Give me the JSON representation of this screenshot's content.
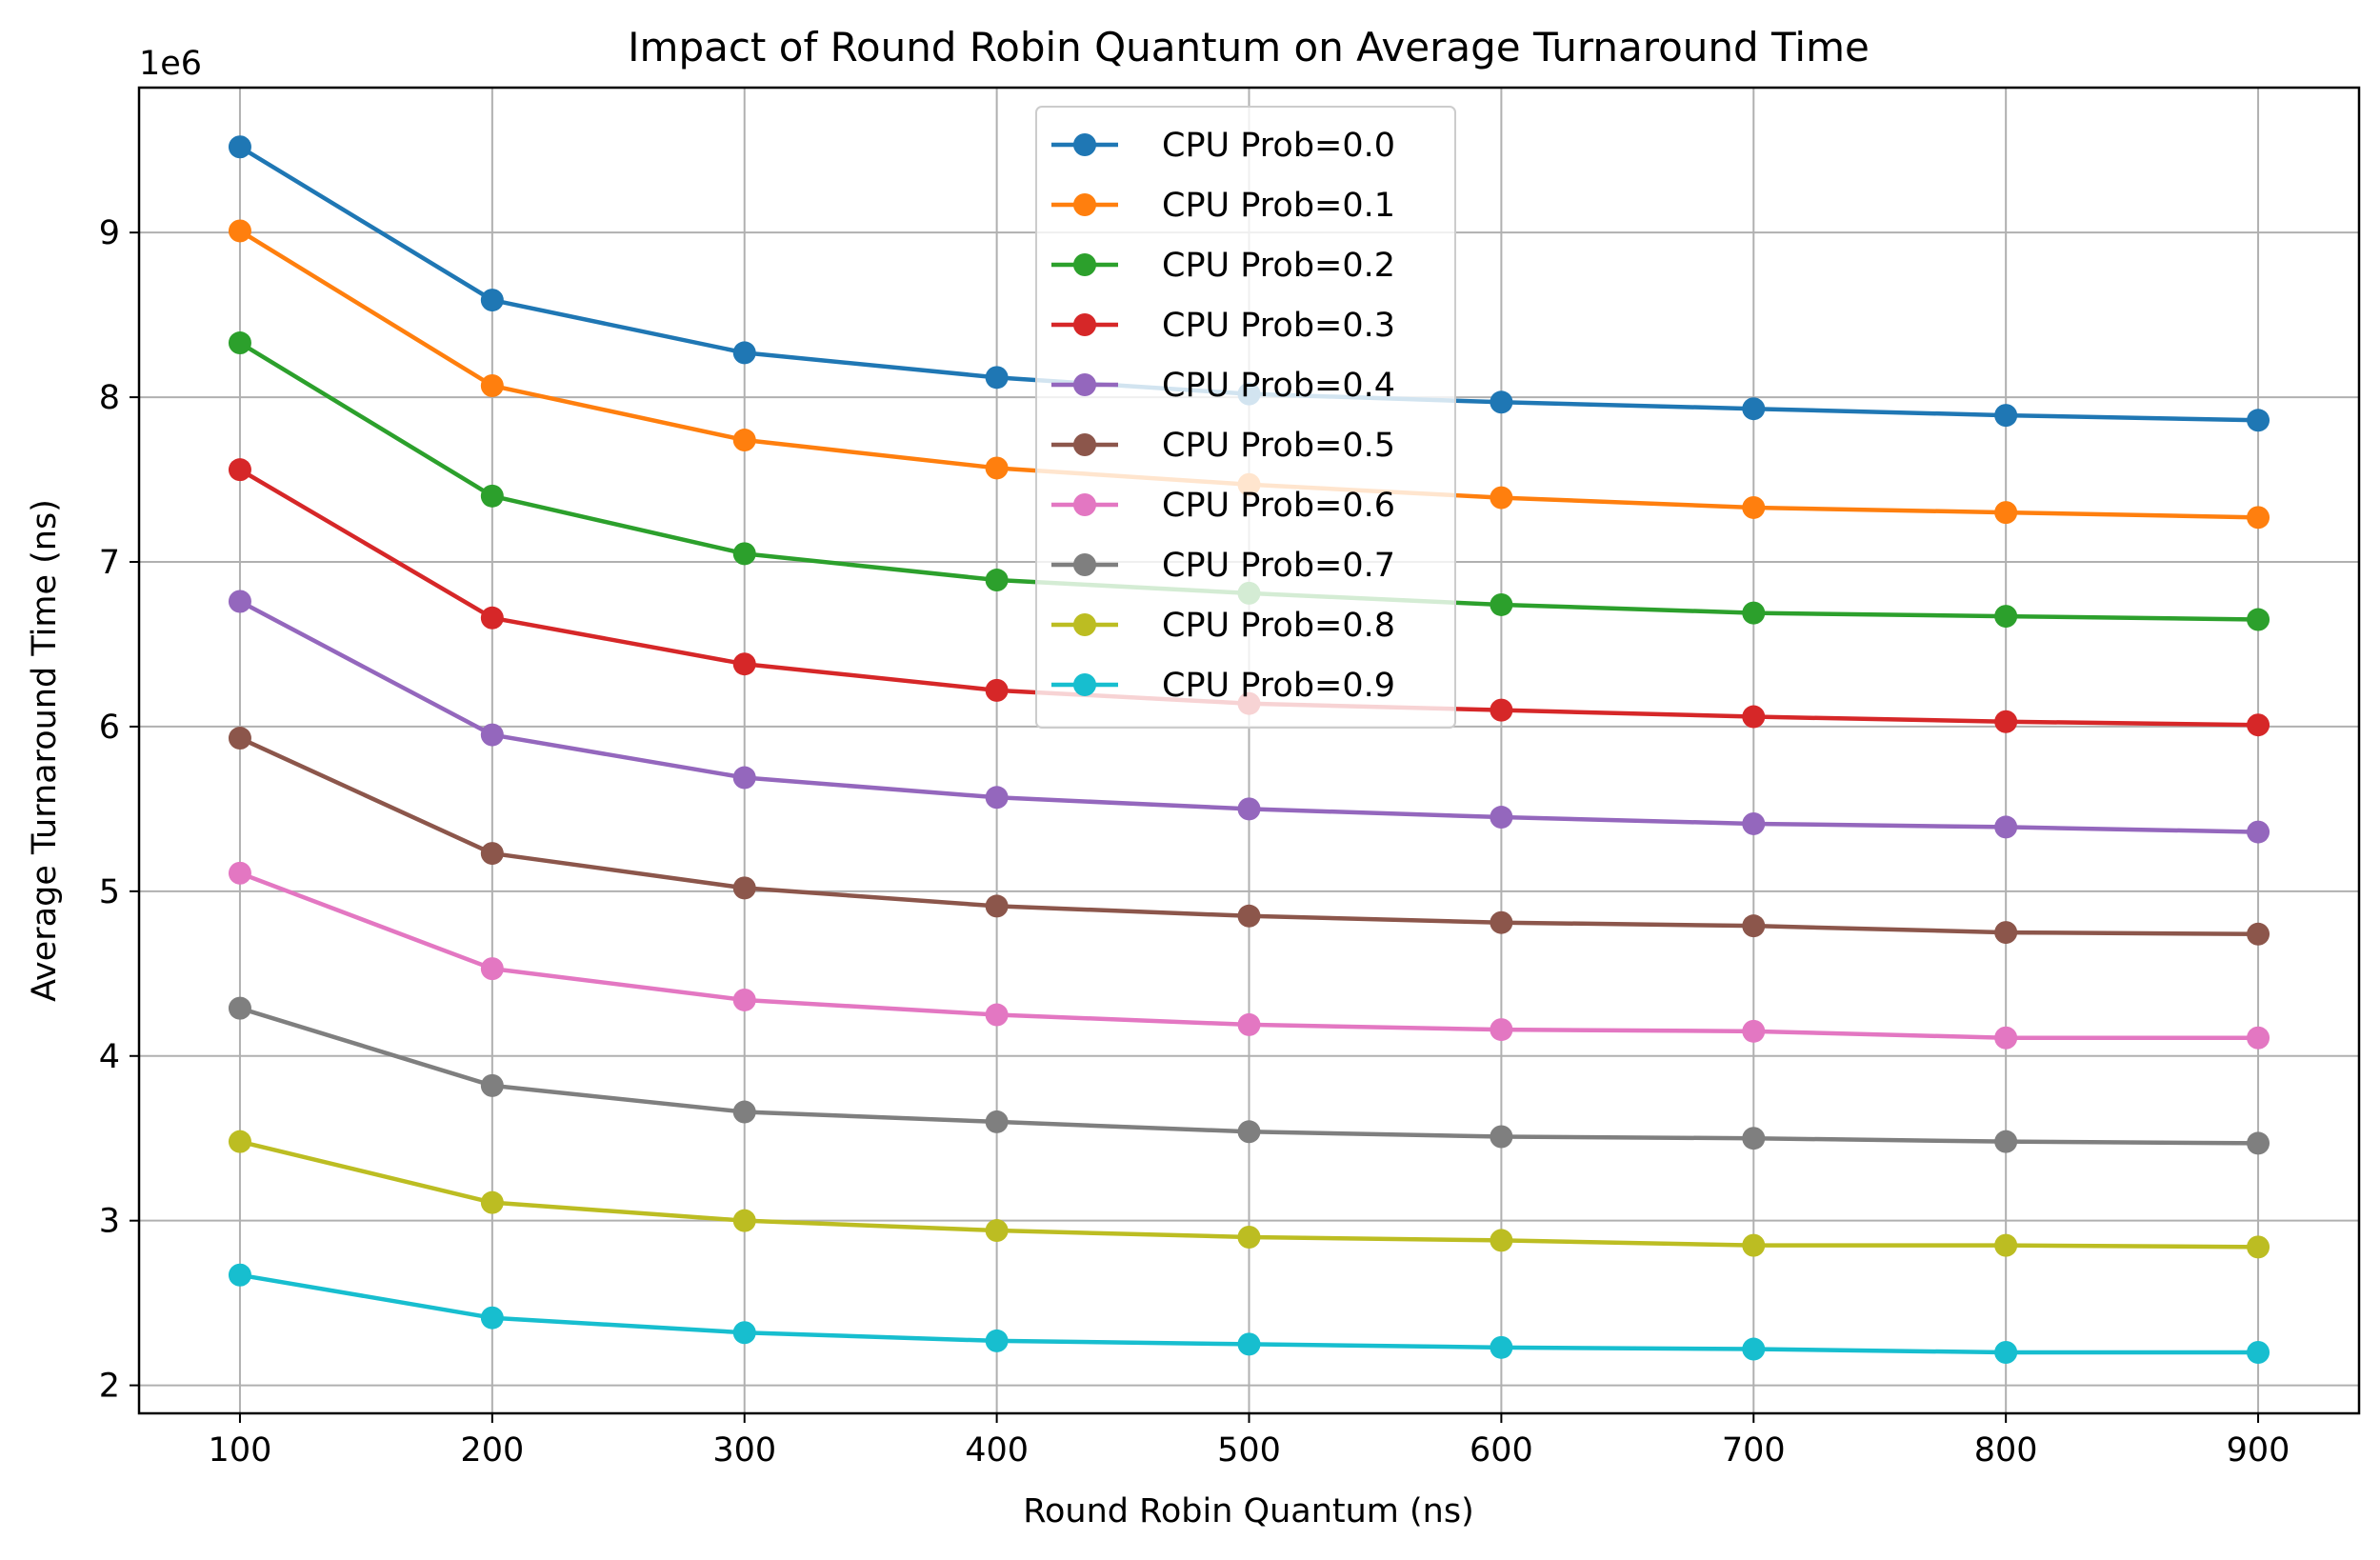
{
  "chart_data": {
    "type": "line",
    "title": "Impact of Round Robin Quantum on Average Turnaround Time",
    "xlabel": "Round Robin Quantum (ns)",
    "ylabel": "Average Turnaround Time (ns)",
    "y_offset_label": "1e6",
    "x": [
      100,
      200,
      300,
      400,
      500,
      600,
      700,
      800,
      900
    ],
    "x_ticks": [
      "100",
      "200",
      "300",
      "400",
      "500",
      "600",
      "700",
      "800",
      "900"
    ],
    "y_ticks": [
      "2",
      "3",
      "4",
      "5",
      "6",
      "7",
      "8",
      "9"
    ],
    "xlim": [
      60,
      940
    ],
    "ylim": [
      1.83,
      9.88
    ],
    "y_scale_factor": 1000000,
    "grid": true,
    "legend_position": "upper-center",
    "series": [
      {
        "name": "CPU Prob=0.0",
        "color": "#1f77b4",
        "values": [
          9.52,
          8.59,
          8.27,
          8.12,
          8.02,
          7.97,
          7.93,
          7.89,
          7.86
        ]
      },
      {
        "name": "CPU Prob=0.1",
        "color": "#ff7f0e",
        "values": [
          9.01,
          8.07,
          7.74,
          7.57,
          7.47,
          7.39,
          7.33,
          7.3,
          7.27
        ]
      },
      {
        "name": "CPU Prob=0.2",
        "color": "#2ca02c",
        "values": [
          8.33,
          7.4,
          7.05,
          6.89,
          6.81,
          6.74,
          6.69,
          6.67,
          6.65
        ]
      },
      {
        "name": "CPU Prob=0.3",
        "color": "#d62728",
        "values": [
          7.56,
          6.66,
          6.38,
          6.22,
          6.14,
          6.1,
          6.06,
          6.03,
          6.01
        ]
      },
      {
        "name": "CPU Prob=0.4",
        "color": "#9467bd",
        "values": [
          6.76,
          5.95,
          5.69,
          5.57,
          5.5,
          5.45,
          5.41,
          5.39,
          5.36
        ]
      },
      {
        "name": "CPU Prob=0.5",
        "color": "#8c564b",
        "values": [
          5.93,
          5.23,
          5.02,
          4.91,
          4.85,
          4.81,
          4.79,
          4.75,
          4.74
        ]
      },
      {
        "name": "CPU Prob=0.6",
        "color": "#e377c2",
        "values": [
          5.11,
          4.53,
          4.34,
          4.25,
          4.19,
          4.16,
          4.15,
          4.11,
          4.11
        ]
      },
      {
        "name": "CPU Prob=0.7",
        "color": "#7f7f7f",
        "values": [
          4.29,
          3.82,
          3.66,
          3.6,
          3.54,
          3.51,
          3.5,
          3.48,
          3.47
        ]
      },
      {
        "name": "CPU Prob=0.8",
        "color": "#bcbd22",
        "values": [
          3.48,
          3.11,
          3.0,
          2.94,
          2.9,
          2.88,
          2.85,
          2.85,
          2.84
        ]
      },
      {
        "name": "CPU Prob=0.9",
        "color": "#17becf",
        "values": [
          2.67,
          2.41,
          2.32,
          2.27,
          2.25,
          2.23,
          2.22,
          2.2,
          2.2
        ]
      }
    ]
  }
}
